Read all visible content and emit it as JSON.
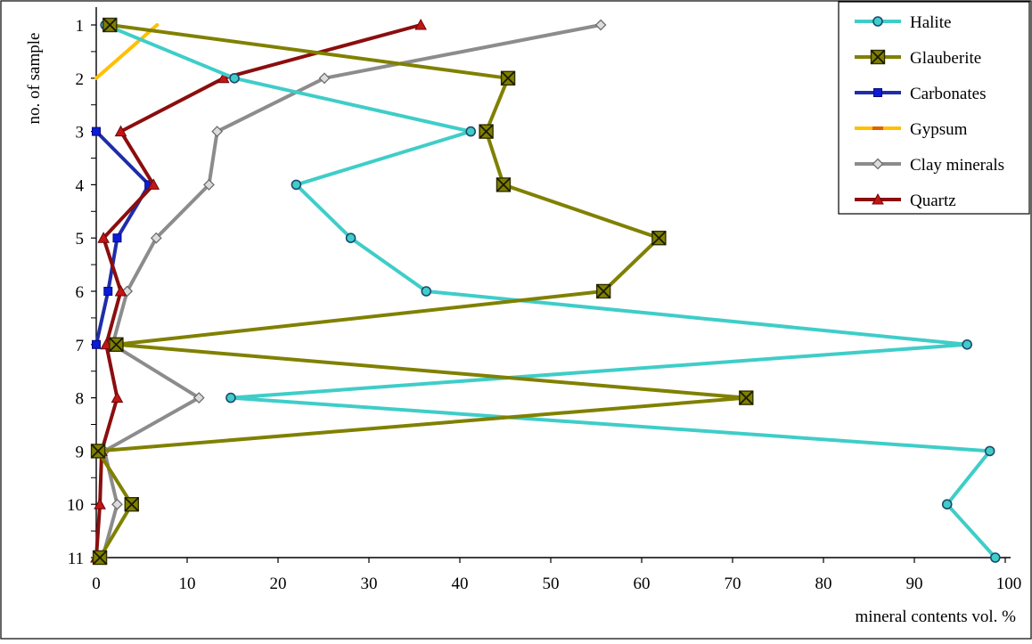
{
  "chart_data": {
    "type": "line",
    "title": "",
    "xlabel": "mineral contents vol. %",
    "ylabel": "no. of sample",
    "xlim": [
      0,
      100
    ],
    "ylim": [
      1,
      11
    ],
    "y_inverted": true,
    "x_ticks": [
      0,
      10,
      20,
      30,
      40,
      50,
      60,
      70,
      80,
      90,
      100
    ],
    "y_ticks": [
      1,
      2,
      3,
      4,
      5,
      6,
      7,
      8,
      9,
      10,
      11
    ],
    "grid": false,
    "legend_position": "top-right",
    "series": [
      {
        "name": "Halite",
        "color": "#3fcdc8",
        "marker": "circle",
        "points": [
          {
            "x": 1,
            "y": 1
          },
          {
            "x": 15.2,
            "y": 2
          },
          {
            "x": 41.2,
            "y": 3
          },
          {
            "x": 22,
            "y": 4
          },
          {
            "x": 28,
            "y": 5
          },
          {
            "x": 36.3,
            "y": 6
          },
          {
            "x": 95.8,
            "y": 7
          },
          {
            "x": 14.8,
            "y": 8
          },
          {
            "x": 98.3,
            "y": 9
          },
          {
            "x": 93.6,
            "y": 10
          },
          {
            "x": 98.9,
            "y": 11
          }
        ]
      },
      {
        "name": "Glauberite",
        "color": "#808000",
        "marker": "x-square",
        "points": [
          {
            "x": 1.5,
            "y": 1
          },
          {
            "x": 45.3,
            "y": 2
          },
          {
            "x": 42.9,
            "y": 3
          },
          {
            "x": 44.8,
            "y": 4
          },
          {
            "x": 61.9,
            "y": 5
          },
          {
            "x": 55.8,
            "y": 6
          },
          {
            "x": 2.2,
            "y": 7
          },
          {
            "x": 71.5,
            "y": 8
          },
          {
            "x": 0.2,
            "y": 9
          },
          {
            "x": 3.9,
            "y": 10
          },
          {
            "x": 0.4,
            "y": 11
          }
        ]
      },
      {
        "name": "Carbonates",
        "color": "#1f2da8",
        "marker": "square",
        "points": [
          {
            "x": 0,
            "y": 3
          },
          {
            "x": 5.8,
            "y": 4
          },
          {
            "x": 2.3,
            "y": 5
          },
          {
            "x": 1.3,
            "y": 6
          },
          {
            "x": 0,
            "y": 7
          }
        ]
      },
      {
        "name": "Gypsum",
        "color": "#ffc000",
        "marker": "none",
        "points": [
          {
            "x": 6.7,
            "y": 1
          },
          {
            "x": 0,
            "y": 2
          }
        ]
      },
      {
        "name": "Clay minerals",
        "color": "#8c8c8c",
        "marker": "diamond",
        "points": [
          {
            "x": 55.5,
            "y": 1
          },
          {
            "x": 25.1,
            "y": 2
          },
          {
            "x": 13.3,
            "y": 3
          },
          {
            "x": 12.4,
            "y": 4
          },
          {
            "x": 6.6,
            "y": 5
          },
          {
            "x": 3.4,
            "y": 6
          },
          {
            "x": 1.8,
            "y": 7
          },
          {
            "x": 11.3,
            "y": 8
          },
          {
            "x": 0.9,
            "y": 9
          },
          {
            "x": 2.3,
            "y": 10
          },
          {
            "x": 0.7,
            "y": 11
          }
        ]
      },
      {
        "name": "Quartz",
        "color": "#8b0e0e",
        "marker": "triangle",
        "points": [
          {
            "x": 35.7,
            "y": 1
          },
          {
            "x": 14,
            "y": 2
          },
          {
            "x": 2.7,
            "y": 3
          },
          {
            "x": 6.3,
            "y": 4
          },
          {
            "x": 0.8,
            "y": 5
          },
          {
            "x": 2.7,
            "y": 6
          },
          {
            "x": 1.1,
            "y": 7
          },
          {
            "x": 2.3,
            "y": 8
          },
          {
            "x": 0.6,
            "y": 9
          },
          {
            "x": 0.4,
            "y": 10
          },
          {
            "x": 0,
            "y": 11
          }
        ]
      }
    ]
  }
}
